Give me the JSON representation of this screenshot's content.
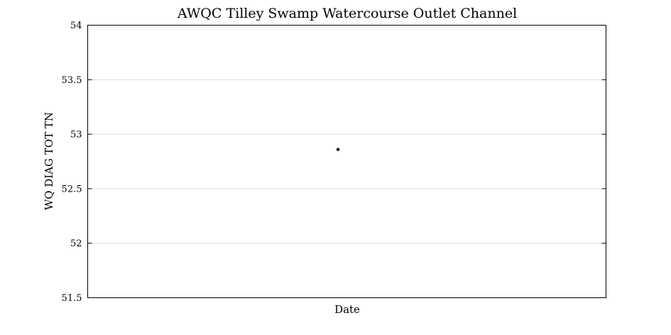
{
  "chart_data": {
    "type": "scatter",
    "title": "AWQC Tilley Swamp Watercourse Outlet Channel",
    "xlabel": "Date",
    "ylabel": "WQ DIAG TOT TN",
    "ylim": [
      51.5,
      54
    ],
    "yticks": [
      51.5,
      52,
      52.5,
      53,
      53.5,
      54
    ],
    "ytick_labels": [
      "51.5",
      "52",
      "52.5",
      "53",
      "53.5",
      "54"
    ],
    "xlim": [
      0,
      1
    ],
    "grid": true,
    "points": [
      {
        "x": 0.483,
        "y": 52.86
      }
    ],
    "marker_color": "#000000"
  }
}
